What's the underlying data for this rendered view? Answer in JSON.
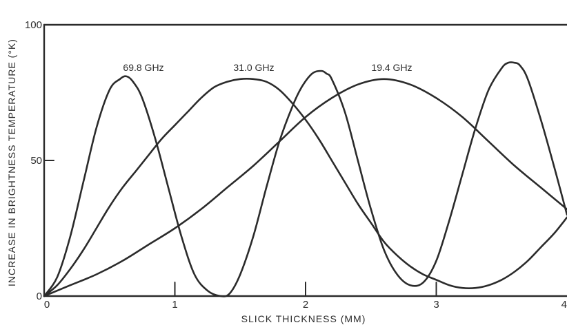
{
  "chart_data": {
    "type": "line",
    "title": "",
    "xlabel": "SLICK THICKNESS (MM)",
    "ylabel": "INCREASE IN BRIGHTNESS TEMPERATURE (°K)",
    "xlim": [
      0,
      4
    ],
    "ylim": [
      0,
      100
    ],
    "x_ticks": [
      0,
      1,
      2,
      3,
      4
    ],
    "x_tick_labels": [
      "0",
      "1",
      "2",
      "3",
      "4"
    ],
    "y_ticks": [
      0,
      50,
      100
    ],
    "y_tick_labels": [
      "0",
      "50",
      "100"
    ],
    "grid": false,
    "legend": "none",
    "series": [
      {
        "name": "69.8 GHz",
        "x": [
          0,
          0.1,
          0.2,
          0.3,
          0.4,
          0.5,
          0.58,
          0.63,
          0.68,
          0.75,
          0.85,
          0.95,
          1.05,
          1.15,
          1.25,
          1.35,
          1.42,
          1.5,
          1.6,
          1.7,
          1.8,
          1.9,
          1.97,
          2.05,
          2.12,
          2.16,
          2.2,
          2.3,
          2.4,
          2.5,
          2.6,
          2.7,
          2.8,
          2.9,
          3.0,
          3.1,
          3.2,
          3.3,
          3.4,
          3.5,
          3.55,
          3.6,
          3.64,
          3.7,
          3.8,
          3.9,
          4.0
        ],
        "values": [
          0,
          7,
          22,
          42,
          62,
          76,
          80,
          81,
          79,
          73,
          58,
          40,
          22,
          8,
          2,
          0,
          1,
          8,
          22,
          40,
          57,
          70,
          77,
          82,
          83,
          82,
          80,
          68,
          50,
          32,
          17,
          8,
          4,
          5,
          13,
          28,
          45,
          62,
          76,
          84,
          86,
          86,
          85,
          80,
          65,
          48,
          30
        ]
      },
      {
        "name": "31.0 GHz",
        "x": [
          0,
          0.1,
          0.2,
          0.3,
          0.4,
          0.5,
          0.6,
          0.7,
          0.8,
          0.9,
          1.0,
          1.1,
          1.2,
          1.3,
          1.4,
          1.5,
          1.6,
          1.7,
          1.8,
          1.9,
          2.0,
          2.1,
          2.2,
          2.3,
          2.4,
          2.5,
          2.6,
          2.7,
          2.8,
          2.9,
          3.0,
          3.1,
          3.2,
          3.3,
          3.4,
          3.5,
          3.6,
          3.7,
          3.8,
          3.9,
          4.0
        ],
        "values": [
          0,
          4,
          10,
          17,
          25,
          33,
          40,
          46,
          52,
          58,
          63,
          68,
          73,
          77,
          79,
          80,
          80,
          79,
          76,
          71,
          65,
          58,
          50,
          42,
          34,
          27,
          20,
          15,
          11,
          8,
          6,
          4,
          3,
          3,
          4,
          6,
          9,
          13,
          18,
          23,
          29
        ]
      },
      {
        "name": "19.4 GHz",
        "x": [
          0,
          0.2,
          0.4,
          0.6,
          0.8,
          1.0,
          1.2,
          1.4,
          1.6,
          1.8,
          2.0,
          2.2,
          2.4,
          2.6,
          2.8,
          3.0,
          3.2,
          3.4,
          3.6,
          3.8,
          4.0
        ],
        "values": [
          0,
          4,
          8,
          13,
          19,
          25,
          32,
          40,
          48,
          57,
          66,
          73,
          78,
          80,
          78,
          73,
          66,
          57,
          48,
          40,
          32
        ]
      }
    ]
  }
}
